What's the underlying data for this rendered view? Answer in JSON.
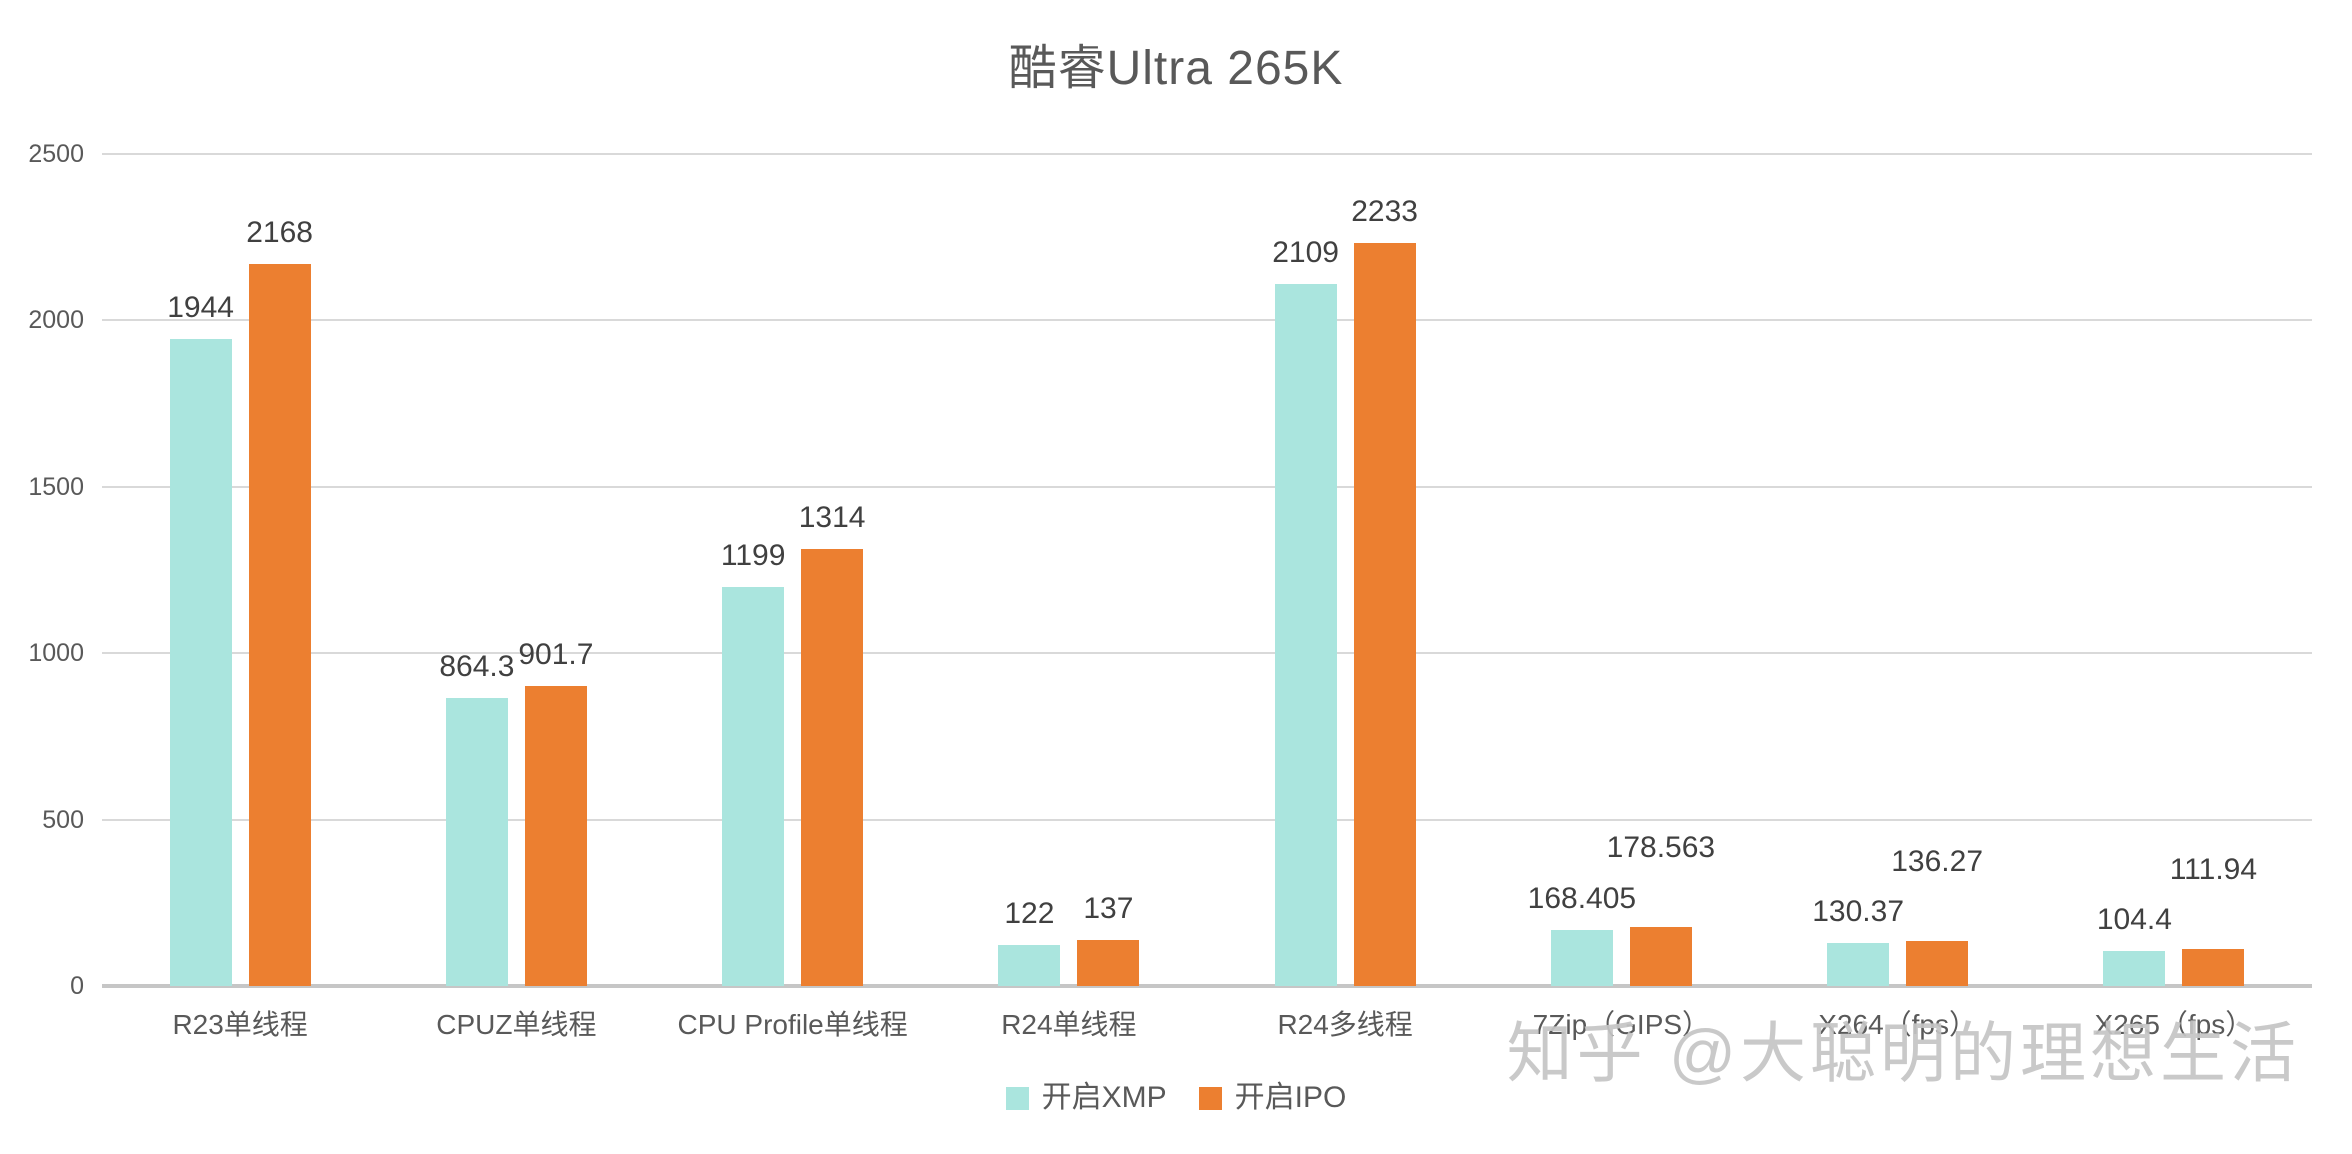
{
  "chart_data": {
    "type": "bar",
    "title": "酷睿Ultra 265K",
    "categories": [
      "R23单线程",
      "CPUZ单线程",
      "CPU Profile单线程",
      "R24单线程",
      "R24多线程",
      "7Zip（GIPS）",
      "X264（fps）",
      "X265（fps）"
    ],
    "series": [
      {
        "name": "开启XMP",
        "color": "#aae5de",
        "values": [
          1944,
          864.3,
          1199,
          122,
          2109,
          168.405,
          130.37,
          104.4
        ]
      },
      {
        "name": "开启IPO",
        "color": "#ec7f30",
        "values": [
          2168,
          901.7,
          1314,
          137,
          2233,
          178.563,
          136.27,
          111.94
        ]
      }
    ],
    "ylim": [
      0,
      2500
    ],
    "ytick_step": 500,
    "yticks": [
      0,
      500,
      1000,
      1500,
      2000,
      2500
    ],
    "grid": true,
    "legend_position": "bottom",
    "colors": {
      "gridline": "#d9d9d9",
      "axisline": "#c6c6c6",
      "axis_text": "#595959",
      "data_label_text": "#404040"
    }
  },
  "watermark": "知乎 @大聪明的理想生活"
}
